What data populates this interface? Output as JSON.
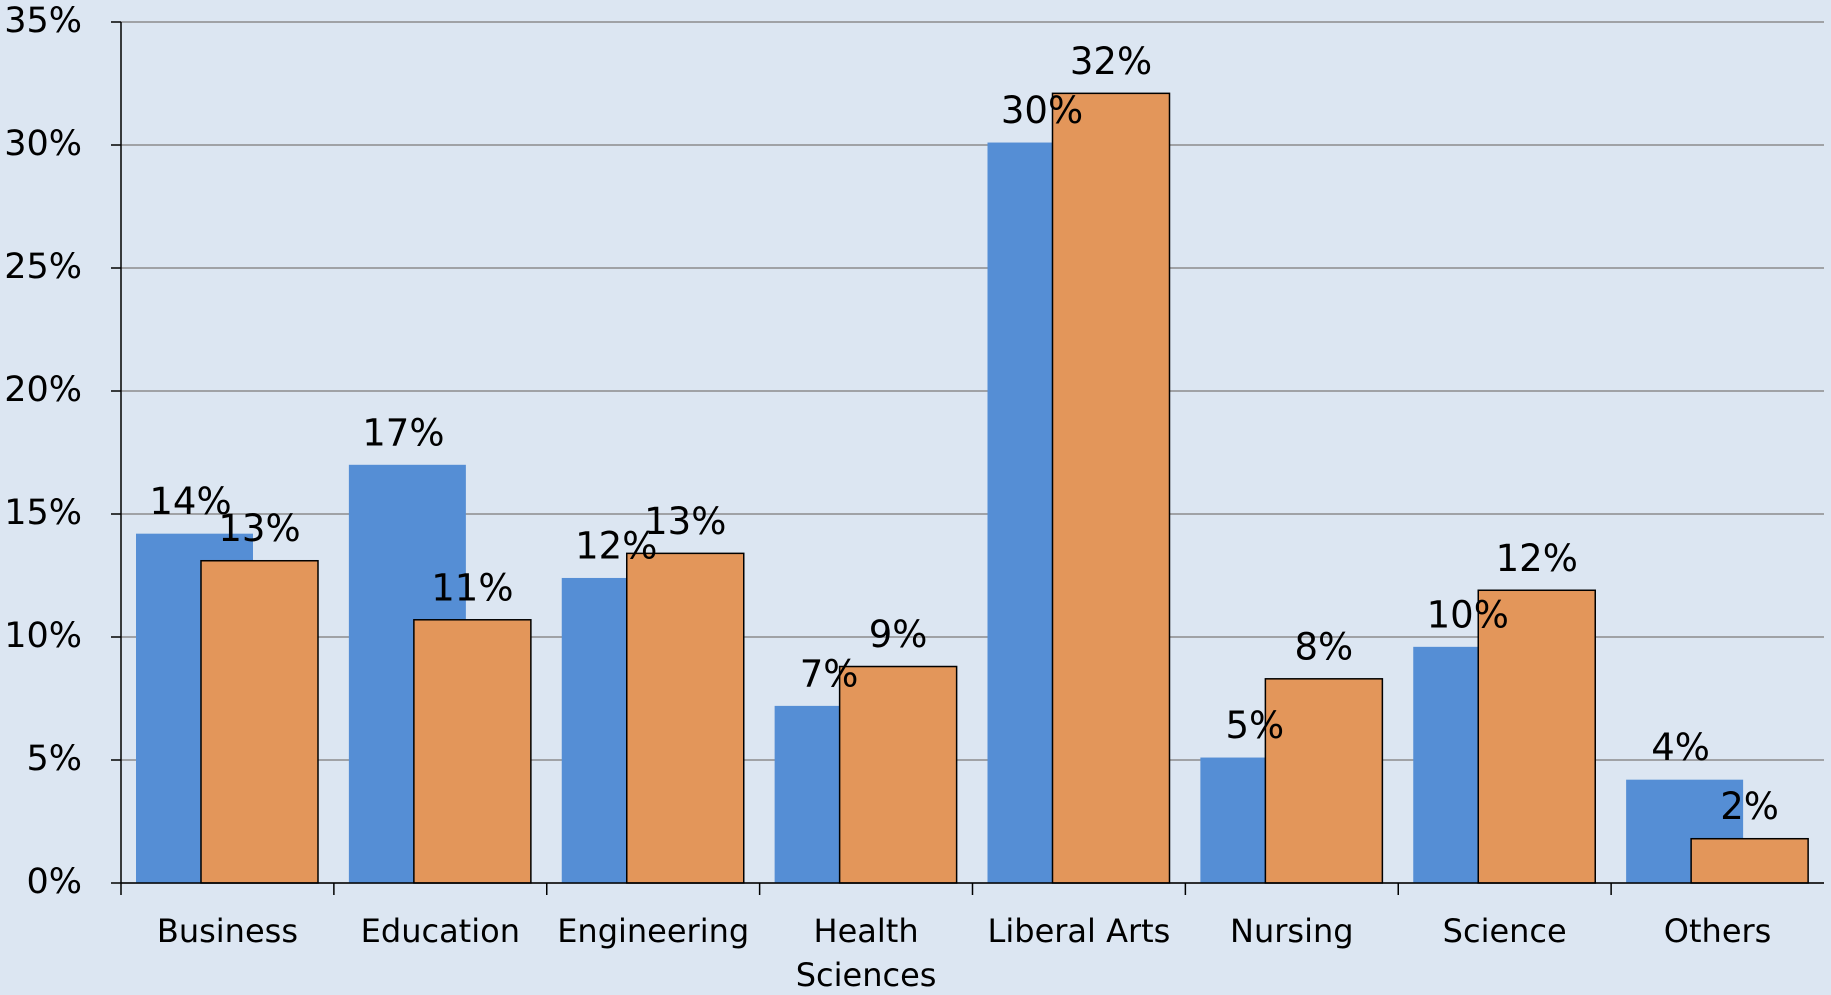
{
  "chart_data": {
    "type": "bar",
    "categories": [
      "Business",
      "Education",
      "Engineering",
      "Health Sciences",
      "Liberal Arts",
      "Nursing",
      "Science",
      "Others"
    ],
    "series": [
      {
        "color": "#558ed5",
        "values": [
          14.2,
          17.0,
          12.4,
          7.2,
          30.1,
          5.1,
          9.6,
          4.2
        ],
        "value_labels": [
          "14%",
          "17%",
          "12%",
          "7%",
          "30%",
          "5%",
          "10%",
          "4%"
        ]
      },
      {
        "color": "#e3965a",
        "values": [
          13.1,
          10.7,
          13.4,
          8.8,
          32.1,
          8.3,
          11.9,
          1.8
        ],
        "value_labels": [
          "13%",
          "11%",
          "13%",
          "9%",
          "32%",
          "8%",
          "12%",
          "2%"
        ]
      }
    ],
    "ylim": [
      0,
      35
    ],
    "yticks": [
      {
        "value": 0,
        "label": "0%"
      },
      {
        "value": 5,
        "label": "5%"
      },
      {
        "value": 10,
        "label": "10%"
      },
      {
        "value": 15,
        "label": "15%"
      },
      {
        "value": 20,
        "label": "20%"
      },
      {
        "value": 25,
        "label": "25%"
      },
      {
        "value": 30,
        "label": "30%"
      },
      {
        "value": 35,
        "label": "35%"
      }
    ],
    "grid": true
  }
}
